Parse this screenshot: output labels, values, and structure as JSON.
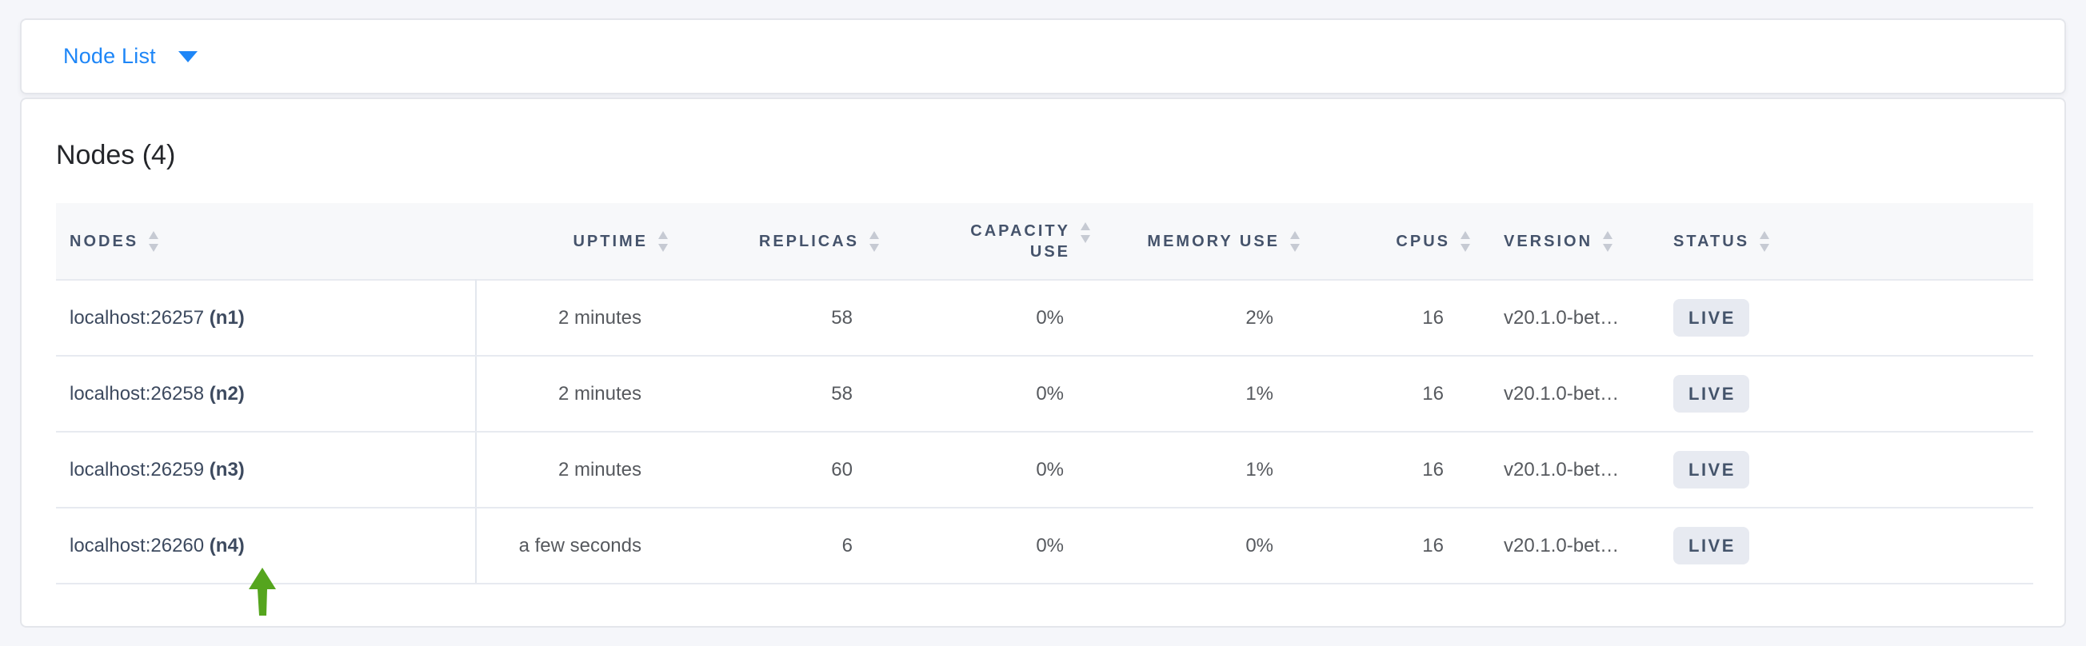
{
  "view_selector": {
    "label": "Node List",
    "caret_icon": "caret-down"
  },
  "panel": {
    "title": "Nodes (4)"
  },
  "table": {
    "columns": [
      {
        "key": "nodes",
        "label": "NODES",
        "align": "left",
        "sortable": true
      },
      {
        "key": "uptime",
        "label": "UPTIME",
        "align": "right",
        "sortable": true
      },
      {
        "key": "replicas",
        "label": "REPLICAS",
        "align": "right",
        "sortable": true
      },
      {
        "key": "capacity_use",
        "label": "CAPACITY USE",
        "align": "right",
        "sortable": true
      },
      {
        "key": "memory_use",
        "label": "MEMORY USE",
        "align": "right",
        "sortable": true
      },
      {
        "key": "cpus",
        "label": "CPUS",
        "align": "right",
        "sortable": true
      },
      {
        "key": "version",
        "label": "VERSION",
        "align": "left",
        "sortable": true
      },
      {
        "key": "status",
        "label": "STATUS",
        "align": "left",
        "sortable": true
      }
    ],
    "rows": [
      {
        "address": "localhost:26257",
        "node_id": "(n1)",
        "uptime": "2 minutes",
        "replicas": "58",
        "capacity_use": "0%",
        "memory_use": "2%",
        "cpus": "16",
        "version": "v20.1.0-bet…",
        "status": "LIVE"
      },
      {
        "address": "localhost:26258",
        "node_id": "(n2)",
        "uptime": "2 minutes",
        "replicas": "58",
        "capacity_use": "0%",
        "memory_use": "1%",
        "cpus": "16",
        "version": "v20.1.0-bet…",
        "status": "LIVE"
      },
      {
        "address": "localhost:26259",
        "node_id": "(n3)",
        "uptime": "2 minutes",
        "replicas": "60",
        "capacity_use": "0%",
        "memory_use": "1%",
        "cpus": "16",
        "version": "v20.1.0-bet…",
        "status": "LIVE"
      },
      {
        "address": "localhost:26260",
        "node_id": "(n4)",
        "uptime": "a few seconds",
        "replicas": "6",
        "capacity_use": "0%",
        "memory_use": "0%",
        "cpus": "16",
        "version": "v20.1.0-bet…",
        "status": "LIVE"
      }
    ]
  },
  "annotation": {
    "type": "arrow-up",
    "points_at": "(n4)",
    "color": "#55a51e"
  },
  "colors": {
    "link_blue": "#1e86f7",
    "header_slate": "#45536b",
    "badge_bg": "#e7eaf1",
    "page_bg": "#f5f6fa"
  }
}
